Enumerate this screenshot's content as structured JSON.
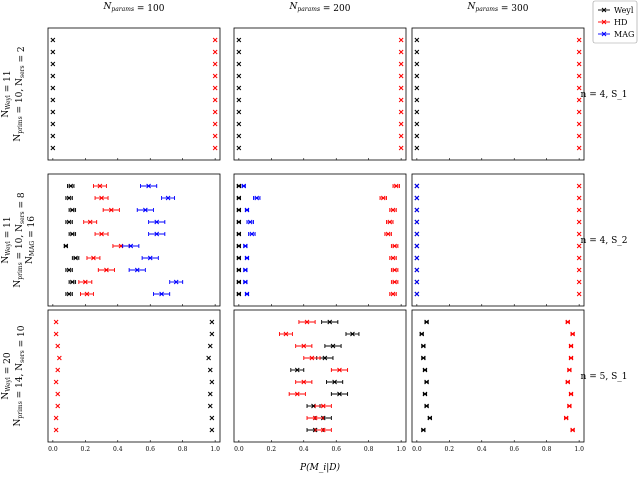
{
  "chart_data": {
    "type": "scatter",
    "xlabel": "P(M_i|D)",
    "xlim": [
      -0.03,
      1.03
    ],
    "xticks": [
      "0.0",
      "0.2",
      "0.4",
      "0.6",
      "0.8",
      "1.0"
    ],
    "legend": {
      "placement": "top-right",
      "entries": [
        {
          "name": "Weyl",
          "color": "#000000"
        },
        {
          "name": "HD",
          "color": "#ff0000"
        },
        {
          "name": "MAG",
          "color": "#0000ff"
        }
      ]
    },
    "columns": [
      "N_params = 100",
      "N_params = 200",
      "N_params = 300"
    ],
    "rows": [
      {
        "left_label_1": "N_Weyl = 11",
        "left_label_2": "N_prims = 10, N_sers = 2",
        "left_label_3": "",
        "right_label": "n = 4, S_1"
      },
      {
        "left_label_1": "N_Weyl = 11",
        "left_label_2": "N_prims = 10, N_sers = 8",
        "left_label_3": "N_MAG = 16",
        "right_label": "n = 4, S_2"
      },
      {
        "left_label_1": "N_Weyl = 20",
        "left_label_2": "N_prims = 14, N_sers = 10",
        "left_label_3": "",
        "right_label": "n = 5, S_1"
      }
    ],
    "panels": [
      {
        "row": 0,
        "col": 0,
        "series": [
          {
            "name": "Weyl",
            "points": [
              [
                0.0,
                0
              ],
              [
                0.0,
                0
              ],
              [
                0.0,
                0
              ],
              [
                0.0,
                0
              ],
              [
                0.0,
                0
              ],
              [
                0.0,
                0
              ],
              [
                0.0,
                0
              ],
              [
                0.0,
                0
              ],
              [
                0.0,
                0
              ],
              [
                0.0,
                0
              ]
            ]
          },
          {
            "name": "HD",
            "points": [
              [
                1.0,
                0
              ],
              [
                1.0,
                0
              ],
              [
                1.0,
                0
              ],
              [
                1.0,
                0
              ],
              [
                1.0,
                0
              ],
              [
                1.0,
                0
              ],
              [
                1.0,
                0
              ],
              [
                1.0,
                0
              ],
              [
                1.0,
                0
              ],
              [
                1.0,
                0
              ]
            ]
          }
        ]
      },
      {
        "row": 0,
        "col": 1,
        "series": [
          {
            "name": "Weyl",
            "points": [
              [
                0.0,
                0
              ],
              [
                0.0,
                0
              ],
              [
                0.0,
                0
              ],
              [
                0.0,
                0
              ],
              [
                0.0,
                0
              ],
              [
                0.0,
                0
              ],
              [
                0.0,
                0
              ],
              [
                0.0,
                0
              ],
              [
                0.0,
                0
              ],
              [
                0.0,
                0
              ]
            ]
          },
          {
            "name": "HD",
            "points": [
              [
                1.0,
                0
              ],
              [
                1.0,
                0
              ],
              [
                1.0,
                0
              ],
              [
                1.0,
                0
              ],
              [
                1.0,
                0
              ],
              [
                1.0,
                0
              ],
              [
                1.0,
                0
              ],
              [
                1.0,
                0
              ],
              [
                1.0,
                0
              ],
              [
                1.0,
                0
              ]
            ]
          }
        ]
      },
      {
        "row": 0,
        "col": 2,
        "series": [
          {
            "name": "Weyl",
            "points": [
              [
                0.0,
                0
              ],
              [
                0.0,
                0
              ],
              [
                0.0,
                0
              ],
              [
                0.0,
                0
              ],
              [
                0.0,
                0
              ],
              [
                0.0,
                0
              ],
              [
                0.0,
                0
              ],
              [
                0.0,
                0
              ],
              [
                0.0,
                0
              ],
              [
                0.0,
                0
              ]
            ]
          },
          {
            "name": "HD",
            "points": [
              [
                1.0,
                0
              ],
              [
                1.0,
                0
              ],
              [
                1.0,
                0
              ],
              [
                1.0,
                0
              ],
              [
                1.0,
                0
              ],
              [
                1.0,
                0
              ],
              [
                1.0,
                0
              ],
              [
                1.0,
                0
              ],
              [
                1.0,
                0
              ],
              [
                1.0,
                0
              ]
            ]
          }
        ]
      },
      {
        "row": 1,
        "col": 0,
        "series": [
          {
            "name": "Weyl",
            "points": [
              [
                0.11,
                0.02
              ],
              [
                0.1,
                0.02
              ],
              [
                0.12,
                0.02
              ],
              [
                0.1,
                0.02
              ],
              [
                0.12,
                0.02
              ],
              [
                0.08,
                0.01
              ],
              [
                0.14,
                0.02
              ],
              [
                0.1,
                0.02
              ],
              [
                0.12,
                0.02
              ],
              [
                0.1,
                0.02
              ]
            ]
          },
          {
            "name": "HD",
            "points": [
              [
                0.29,
                0.04
              ],
              [
                0.3,
                0.04
              ],
              [
                0.36,
                0.05
              ],
              [
                0.23,
                0.04
              ],
              [
                0.3,
                0.04
              ],
              [
                0.42,
                0.05
              ],
              [
                0.25,
                0.04
              ],
              [
                0.33,
                0.05
              ],
              [
                0.2,
                0.04
              ],
              [
                0.21,
                0.04
              ]
            ]
          },
          {
            "name": "MAG",
            "points": [
              [
                0.59,
                0.05
              ],
              [
                0.71,
                0.04
              ],
              [
                0.57,
                0.05
              ],
              [
                0.64,
                0.05
              ],
              [
                0.64,
                0.05
              ],
              [
                0.48,
                0.05
              ],
              [
                0.6,
                0.05
              ],
              [
                0.52,
                0.05
              ],
              [
                0.76,
                0.04
              ],
              [
                0.67,
                0.05
              ]
            ]
          }
        ]
      },
      {
        "row": 1,
        "col": 1,
        "series": [
          {
            "name": "Weyl",
            "points": [
              [
                0.0,
                0.01
              ],
              [
                0.0,
                0.01
              ],
              [
                0.0,
                0.01
              ],
              [
                0.0,
                0.01
              ],
              [
                0.0,
                0.01
              ],
              [
                0.0,
                0.01
              ],
              [
                0.0,
                0.01
              ],
              [
                0.0,
                0.01
              ],
              [
                0.0,
                0.01
              ],
              [
                0.0,
                0.01
              ]
            ]
          },
          {
            "name": "HD",
            "points": [
              [
                0.97,
                0.02
              ],
              [
                0.89,
                0.02
              ],
              [
                0.95,
                0.02
              ],
              [
                0.93,
                0.02
              ],
              [
                0.92,
                0.02
              ],
              [
                0.96,
                0.02
              ],
              [
                0.95,
                0.02
              ],
              [
                0.96,
                0.02
              ],
              [
                0.96,
                0.02
              ],
              [
                0.95,
                0.02
              ]
            ]
          },
          {
            "name": "MAG",
            "points": [
              [
                0.03,
                0.01
              ],
              [
                0.11,
                0.02
              ],
              [
                0.05,
                0.01
              ],
              [
                0.07,
                0.02
              ],
              [
                0.08,
                0.02
              ],
              [
                0.04,
                0.01
              ],
              [
                0.05,
                0.01
              ],
              [
                0.04,
                0.01
              ],
              [
                0.04,
                0.01
              ],
              [
                0.05,
                0.01
              ]
            ]
          }
        ]
      },
      {
        "row": 1,
        "col": 2,
        "series": [
          {
            "name": "Weyl",
            "points": [
              [
                0.0,
                0
              ],
              [
                0.0,
                0
              ],
              [
                0.0,
                0
              ],
              [
                0.0,
                0
              ],
              [
                0.0,
                0
              ],
              [
                0.0,
                0
              ],
              [
                0.0,
                0
              ],
              [
                0.0,
                0
              ],
              [
                0.0,
                0
              ],
              [
                0.0,
                0
              ]
            ]
          },
          {
            "name": "HD",
            "points": [
              [
                1.0,
                0
              ],
              [
                1.0,
                0
              ],
              [
                1.0,
                0
              ],
              [
                1.0,
                0
              ],
              [
                1.0,
                0
              ],
              [
                1.0,
                0
              ],
              [
                1.0,
                0
              ],
              [
                1.0,
                0
              ],
              [
                1.0,
                0
              ],
              [
                1.0,
                0
              ]
            ]
          },
          {
            "name": "MAG",
            "points": [
              [
                0.0,
                0
              ],
              [
                0.0,
                0
              ],
              [
                0.0,
                0
              ],
              [
                0.0,
                0
              ],
              [
                0.0,
                0
              ],
              [
                0.0,
                0
              ],
              [
                0.0,
                0
              ],
              [
                0.0,
                0
              ],
              [
                0.0,
                0
              ],
              [
                0.0,
                0
              ]
            ]
          }
        ]
      },
      {
        "row": 2,
        "col": 0,
        "series": [
          {
            "name": "Weyl",
            "points": [
              [
                0.98,
                0
              ],
              [
                0.98,
                0
              ],
              [
                0.97,
                0
              ],
              [
                0.96,
                0
              ],
              [
                0.97,
                0
              ],
              [
                0.98,
                0
              ],
              [
                0.97,
                0
              ],
              [
                0.97,
                0
              ],
              [
                0.98,
                0
              ],
              [
                0.98,
                0
              ]
            ]
          },
          {
            "name": "HD",
            "points": [
              [
                0.02,
                0
              ],
              [
                0.02,
                0
              ],
              [
                0.03,
                0
              ],
              [
                0.04,
                0
              ],
              [
                0.03,
                0
              ],
              [
                0.02,
                0
              ],
              [
                0.03,
                0
              ],
              [
                0.03,
                0
              ],
              [
                0.02,
                0
              ],
              [
                0.02,
                0
              ]
            ]
          }
        ]
      },
      {
        "row": 2,
        "col": 1,
        "series": [
          {
            "name": "Weyl",
            "points": [
              [
                0.56,
                0.05
              ],
              [
                0.7,
                0.04
              ],
              [
                0.58,
                0.05
              ],
              [
                0.53,
                0.05
              ],
              [
                0.36,
                0.04
              ],
              [
                0.59,
                0.05
              ],
              [
                0.62,
                0.05
              ],
              [
                0.46,
                0.04
              ],
              [
                0.52,
                0.05
              ],
              [
                0.47,
                0.05
              ]
            ]
          },
          {
            "name": "HD",
            "points": [
              [
                0.42,
                0.05
              ],
              [
                0.29,
                0.04
              ],
              [
                0.4,
                0.05
              ],
              [
                0.45,
                0.05
              ],
              [
                0.62,
                0.05
              ],
              [
                0.4,
                0.05
              ],
              [
                0.36,
                0.05
              ],
              [
                0.52,
                0.05
              ],
              [
                0.47,
                0.05
              ],
              [
                0.52,
                0.05
              ]
            ]
          }
        ]
      },
      {
        "row": 2,
        "col": 2,
        "series": [
          {
            "name": "Weyl",
            "points": [
              [
                0.06,
                0.01
              ],
              [
                0.03,
                0.01
              ],
              [
                0.04,
                0.01
              ],
              [
                0.04,
                0.01
              ],
              [
                0.05,
                0.01
              ],
              [
                0.06,
                0.01
              ],
              [
                0.05,
                0.01
              ],
              [
                0.06,
                0.01
              ],
              [
                0.08,
                0.01
              ],
              [
                0.04,
                0.01
              ]
            ]
          },
          {
            "name": "HD",
            "points": [
              [
                0.93,
                0.01
              ],
              [
                0.96,
                0.01
              ],
              [
                0.95,
                0.01
              ],
              [
                0.95,
                0.01
              ],
              [
                0.94,
                0.01
              ],
              [
                0.93,
                0.01
              ],
              [
                0.95,
                0.01
              ],
              [
                0.94,
                0.01
              ],
              [
                0.92,
                0.01
              ],
              [
                0.96,
                0.01
              ]
            ]
          }
        ]
      }
    ]
  }
}
